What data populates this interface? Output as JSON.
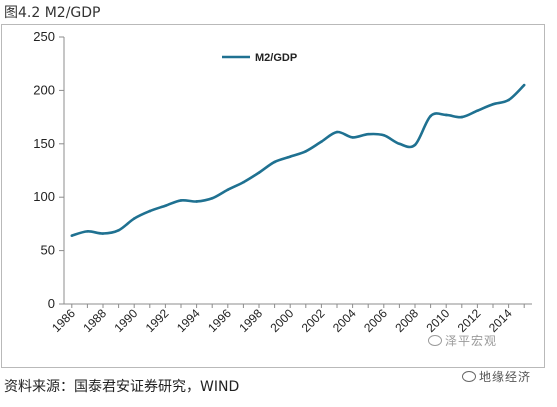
{
  "figure": {
    "title": "图4.2  M2/GDP",
    "source": "资料来源：国泰君安证券研究，WIND"
  },
  "watermarks": {
    "first": "泽平宏观",
    "second": "地缘经济",
    "icon": "wechat-icon"
  },
  "colors": {
    "series": "#1f7191",
    "axis": "#8c8c8c",
    "frame": "#b9b9b9"
  },
  "chart_data": {
    "type": "line",
    "series": [
      {
        "name": "M2/GDP",
        "x": [
          1986,
          1987,
          1988,
          1989,
          1990,
          1991,
          1992,
          1993,
          1994,
          1995,
          1996,
          1997,
          1998,
          1999,
          2000,
          2001,
          2002,
          2003,
          2004,
          2005,
          2006,
          2007,
          2008,
          2009,
          2010,
          2011,
          2012,
          2013,
          2014,
          2015
        ],
        "values": [
          64,
          68,
          66,
          69,
          80,
          87,
          92,
          97,
          96,
          99,
          107,
          114,
          123,
          133,
          138,
          143,
          152,
          161,
          156,
          159,
          158,
          150,
          149,
          176,
          177,
          175,
          181,
          187,
          191,
          205
        ]
      }
    ],
    "xticks": [
      "1986",
      "1988",
      "1990",
      "1992",
      "1994",
      "1996",
      "1998",
      "2000",
      "2002",
      "2004",
      "2006",
      "2008",
      "2010",
      "2012",
      "2014"
    ],
    "yticks": [
      "0",
      "50",
      "100",
      "150",
      "200",
      "250"
    ],
    "xlim": [
      1985.5,
      2015.5
    ],
    "ylim": [
      0,
      250
    ],
    "grid": false,
    "legend_position": "top-center",
    "title": "",
    "xlabel": "",
    "ylabel": ""
  }
}
